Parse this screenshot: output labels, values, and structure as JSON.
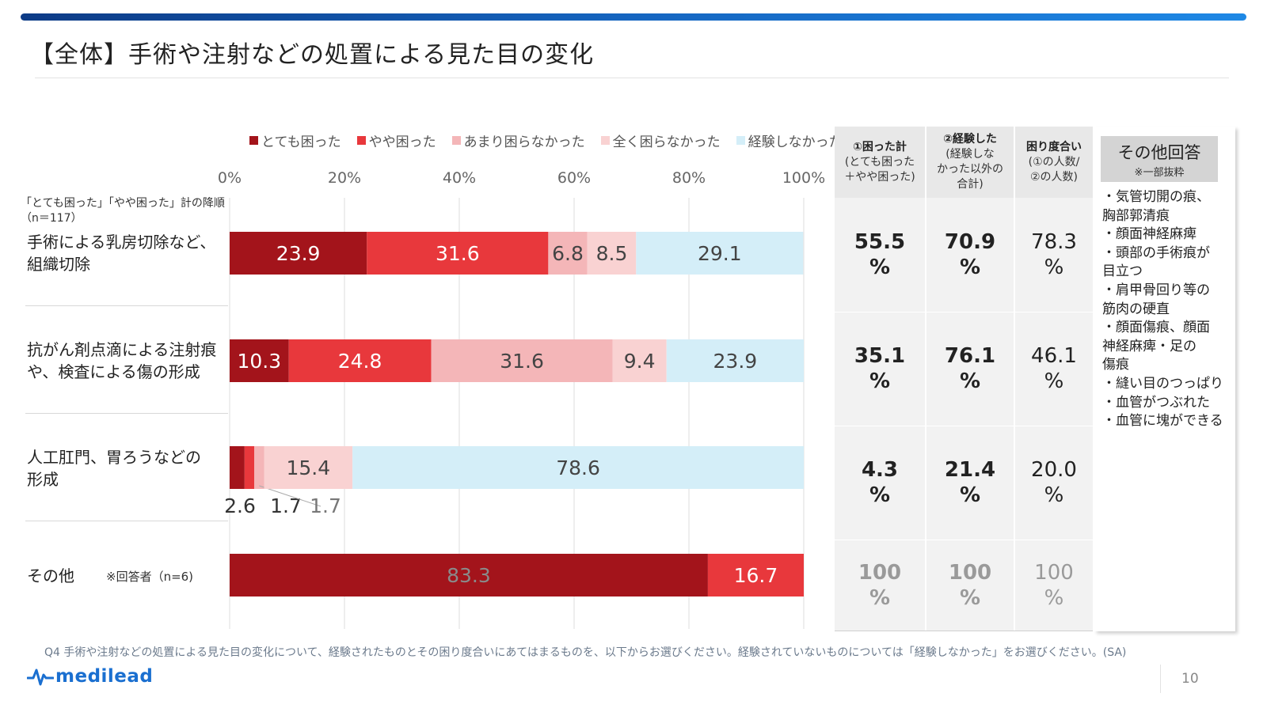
{
  "title": "【全体】手術や注射などの処置による見た目の変化",
  "legend": [
    {
      "label": "とても困った",
      "color": "#a3141b"
    },
    {
      "label": "やや困った",
      "color": "#e8383c"
    },
    {
      "label": "あまり困らなかった",
      "color": "#f4b6b8"
    },
    {
      "label": "全く困らなかった",
      "color": "#f9d2d2"
    },
    {
      "label": "経験しなかった",
      "color": "#d4eef8"
    }
  ],
  "sort_note": {
    "line1": "「とても困った」「やや困った」計の降順",
    "line2": "（n＝117）"
  },
  "chart_data": {
    "type": "bar",
    "orientation": "horizontal",
    "stacked": true,
    "xlim": [
      0,
      100
    ],
    "xticks": [
      "0%",
      "20%",
      "40%",
      "60%",
      "80%",
      "100%"
    ],
    "categories": [
      "手術による乳房切除など、組織切除",
      "抗がん剤点滴による注射痕や、検査による傷の形成",
      "人工肛門、胃ろうなどの形成",
      "その他"
    ],
    "series": [
      {
        "name": "とても困った",
        "values": [
          23.9,
          10.3,
          2.6,
          83.3
        ]
      },
      {
        "name": "やや困った",
        "values": [
          31.6,
          24.8,
          1.7,
          16.7
        ]
      },
      {
        "name": "あまり困らなかった",
        "values": [
          6.8,
          31.6,
          1.7,
          0
        ]
      },
      {
        "name": "全く困らなかった",
        "values": [
          8.5,
          9.4,
          15.4,
          0
        ]
      },
      {
        "name": "経験しなかった",
        "values": [
          29.1,
          23.9,
          78.6,
          0
        ]
      }
    ]
  },
  "categories_display": [
    [
      "手術による乳房切除など、",
      "組織切除"
    ],
    [
      "抗がん剤点滴による注射痕",
      "や、検査による傷の形成"
    ],
    [
      "人工肛門、胃ろうなどの",
      "形成"
    ],
    [
      "その他"
    ]
  ],
  "other_n_note": "※回答者（n=6)",
  "table": {
    "headers": [
      {
        "h1": "①困った計",
        "sub": [
          "(とても困った",
          "＋やや困った)"
        ]
      },
      {
        "h1": "②経験した",
        "sub": [
          "(経験しな",
          "かった以外の",
          "合計)"
        ]
      },
      {
        "h1": "困り度合い",
        "sub": [
          "(①の人数/",
          "②の人数)"
        ]
      }
    ],
    "rows": [
      {
        "c1": "55.5",
        "c2": "70.9",
        "c3": "78.3"
      },
      {
        "c1": "35.1",
        "c2": "76.1",
        "c3": "46.1"
      },
      {
        "c1": "4.3",
        "c2": "21.4",
        "c3": "20.0"
      },
      {
        "c1": "100",
        "c2": "100",
        "c3": "100"
      }
    ],
    "unit": "%"
  },
  "other_answers": {
    "title": "その他回答",
    "subtitle": "※一部抜粋",
    "lines": [
      "・気管切開の痕、",
      "胸部郭清痕",
      "・顔面神経麻痺",
      "・頭部の手術痕が",
      "目立つ",
      "・肩甲骨回り等の",
      "筋肉の硬直",
      "・顔面傷痕、顔面",
      "神経麻痺・足の",
      "傷痕",
      "・縫い目のつっぱり",
      "・血管がつぶれた",
      "・血管に塊ができる"
    ]
  },
  "footnote": "Q4 手術や注射などの処置による見た目の変化について、経験されたものとその困り度合いにあてはまるものを、以下からお選びください。経験されていないものについては「経験しなかった」をお選びください。(SA)",
  "brand": "medilead",
  "page_number": "10"
}
